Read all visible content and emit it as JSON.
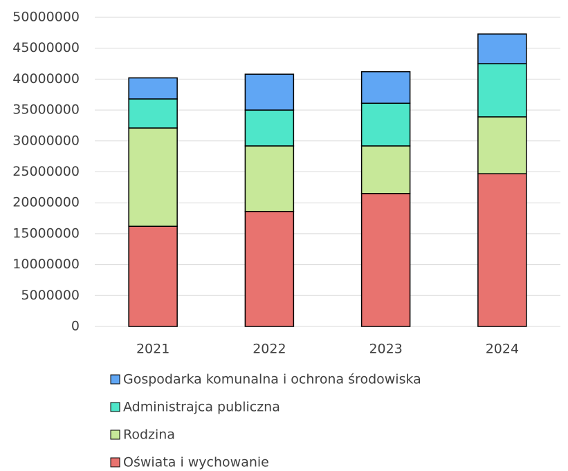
{
  "chart_data": {
    "type": "stacked_bar",
    "categories": [
      "2021",
      "2022",
      "2023",
      "2024"
    ],
    "series": [
      {
        "name": "Oświata i wychowanie",
        "color": "#e8736f",
        "values": [
          16200000,
          18600000,
          21500000,
          24700000
        ]
      },
      {
        "name": "Rodzina",
        "color": "#c7e899",
        "values": [
          15900000,
          10600000,
          7700000,
          9200000
        ]
      },
      {
        "name": "Administrajca publiczna",
        "color": "#4ee6c9",
        "values": [
          4700000,
          5800000,
          6900000,
          8600000
        ]
      },
      {
        "name": "Gospodarka komunalna i ochrona środowiska",
        "color": "#60a6f4",
        "values": [
          3400000,
          5800000,
          5100000,
          4800000
        ]
      }
    ],
    "ylim": [
      0,
      50000000
    ],
    "yticks": [
      0,
      5000000,
      10000000,
      15000000,
      20000000,
      25000000,
      30000000,
      35000000,
      40000000,
      45000000,
      50000000
    ],
    "grid": true,
    "legend": "bottom"
  }
}
